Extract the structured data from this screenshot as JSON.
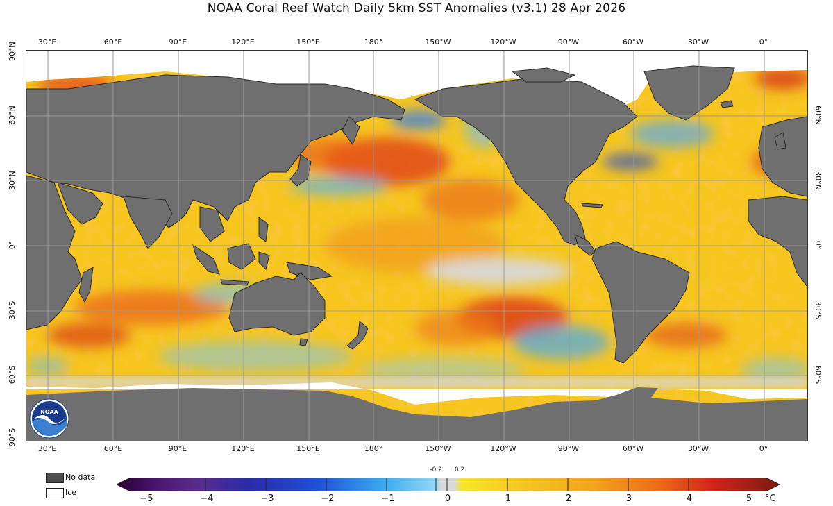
{
  "title": "NOAA Coral Reef Watch Daily 5km SST Anomalies  (v3.1)   28 Apr 2026",
  "map": {
    "longitude_labels": [
      "30°E",
      "60°E",
      "90°E",
      "120°E",
      "150°E",
      "180°",
      "150°W",
      "120°W",
      "90°W",
      "60°W",
      "30°W",
      "0°"
    ],
    "latitude_labels": [
      "90°N",
      "60°N",
      "30°N",
      "0°",
      "30°S",
      "60°S",
      "90°S"
    ],
    "land_color": "#6f6f6f",
    "ice_color": "#ffffff",
    "ocean_base_color": "#f5c31e"
  },
  "legend": {
    "no_data_label": "No data",
    "no_data_color": "#4d4d4d",
    "ice_label": "Ice",
    "ice_color": "#ffffff"
  },
  "colorbar": {
    "ticks": [
      "−5",
      "−4",
      "−3",
      "−2",
      "−1",
      "0",
      "1",
      "2",
      "3",
      "4",
      "5"
    ],
    "small_ticks": [
      "-0.2",
      "0.2"
    ],
    "unit": "°C",
    "colors": [
      "#2a0030",
      "#4a1570",
      "#2a2aa8",
      "#1f4ed8",
      "#3aa8f0",
      "#d9d9d9",
      "#f7e52a",
      "#f3a41c",
      "#ee6a18",
      "#d3231a",
      "#7a1a10"
    ]
  },
  "logo": {
    "name": "NOAA",
    "colors": [
      "#1a3c8c",
      "#3a7fd0",
      "#ffffff"
    ]
  }
}
